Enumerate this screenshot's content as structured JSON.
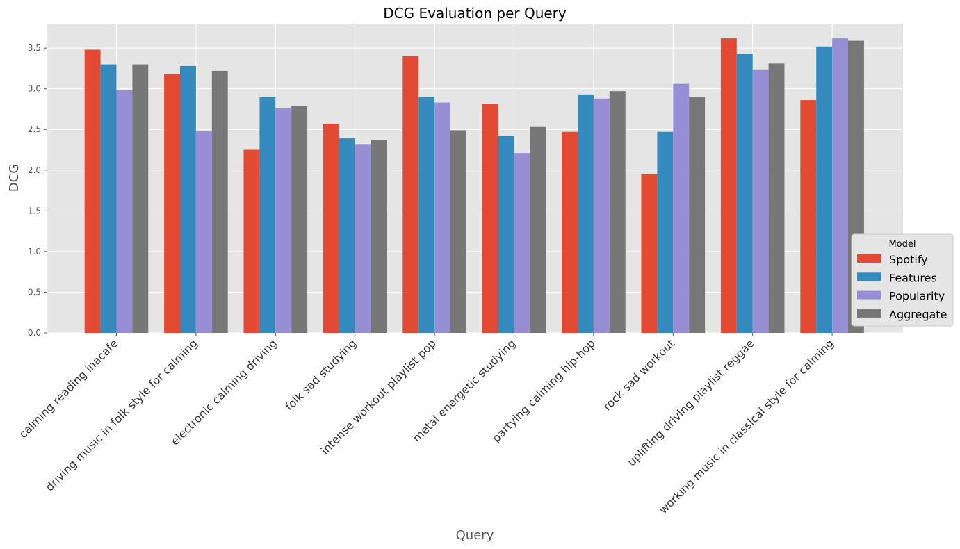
{
  "chart_data": {
    "type": "bar",
    "title": "DCG Evaluation per Query",
    "xlabel": "Query",
    "ylabel": "DCG",
    "ylim": [
      0,
      3.8
    ],
    "yticks": [
      "0.0",
      "0.5",
      "1.0",
      "1.5",
      "2.0",
      "2.5",
      "3.0",
      "3.5"
    ],
    "grid": true,
    "legend": {
      "title": "Model",
      "placement": "lower-right"
    },
    "categories": [
      "calming reading inacafe",
      "driving music in folk style for calming",
      "electronic calming driving",
      "folk sad studying",
      "intense workout playlist pop",
      "metal energetic studying",
      "partying calming hip-hop",
      "rock sad workout",
      "uplifting driving playlist reggae",
      "working music in classical style for calming"
    ],
    "series": [
      {
        "name": "Spotify",
        "color": "#E24A33",
        "values": [
          3.48,
          3.18,
          2.25,
          2.57,
          3.4,
          2.81,
          2.47,
          1.95,
          3.62,
          2.86
        ]
      },
      {
        "name": "Features",
        "color": "#348ABD",
        "values": [
          3.3,
          3.28,
          2.9,
          2.39,
          2.9,
          2.42,
          2.93,
          2.47,
          3.43,
          3.52
        ]
      },
      {
        "name": "Popularity",
        "color": "#988ED5",
        "values": [
          2.98,
          2.48,
          2.76,
          2.32,
          2.83,
          2.21,
          2.88,
          3.06,
          3.23,
          3.62
        ]
      },
      {
        "name": "Aggregate",
        "color": "#777777",
        "values": [
          3.3,
          3.22,
          2.79,
          2.37,
          2.49,
          2.53,
          2.97,
          2.9,
          3.31,
          3.59
        ]
      }
    ]
  }
}
